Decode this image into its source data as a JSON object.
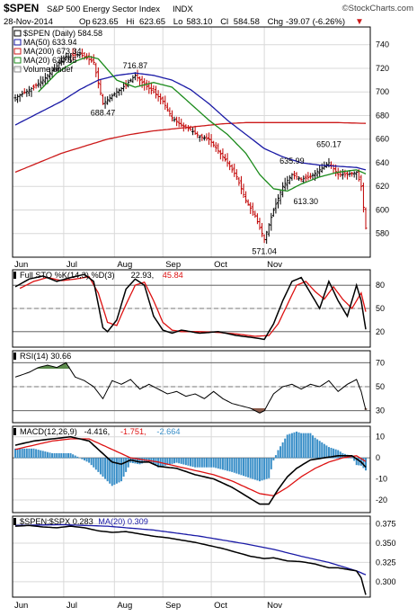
{
  "header": {
    "symbol": "$SPEN",
    "description": "S&P 500 Energy Sector Index",
    "exchange": "INDX",
    "logo": "©StockCharts.com",
    "date": "28-Nov-2014",
    "quote": [
      {
        "label": "Op",
        "value": "623.65"
      },
      {
        "label": "Hi",
        "value": "623.65"
      },
      {
        "label": "Lo",
        "value": "583.10"
      },
      {
        "label": "Cl",
        "value": "584.58"
      },
      {
        "label": "Chg",
        "value": "-39.07 (-6.26%)"
      }
    ],
    "down_marker": "▼"
  },
  "colors": {
    "frame": "#000000",
    "grid": "#d9d9d9",
    "price": "#000000",
    "ma50": "#1a1aa6",
    "ma200": "#cc1a1a",
    "ma20": "#1a8a1a",
    "sto_k": "#000000",
    "sto_d": "#dd1111",
    "rsi_hi_fill": "#5a8a4a",
    "rsi_lo_fill": "#8a5a4a",
    "macd_line": "#000000",
    "macd_signal": "#dd1111",
    "macd_hist": "#3a8fc8",
    "ratio_ma": "#1a1aa6"
  },
  "chart_data": [
    {
      "type": "ohlc",
      "panel": "price",
      "legend": [
        {
          "key": "price",
          "text": "$SPEN (Daily) 584.58"
        },
        {
          "key": "ma50",
          "text": "MA(50) 633.94"
        },
        {
          "key": "ma200",
          "text": "MA(200) 673.34"
        },
        {
          "key": "ma20",
          "text": "MA(20) 630.55"
        },
        {
          "key": "volume",
          "text": "Volume undef"
        }
      ],
      "ylim": [
        560,
        755
      ],
      "yticks": [
        580,
        600,
        620,
        640,
        660,
        680,
        700,
        720,
        740
      ],
      "annotations": [
        {
          "text": "716.87",
          "day": 52,
          "value": 716.87,
          "pos": "above"
        },
        {
          "text": "688.47",
          "day": 38,
          "value": 688.47,
          "pos": "below"
        },
        {
          "text": "650.17",
          "day": 136,
          "value": 650.17,
          "pos": "above"
        },
        {
          "text": "635.99",
          "day": 120,
          "value": 635.99,
          "pos": "above"
        },
        {
          "text": "613.30",
          "day": 126,
          "value": 613.3,
          "pos": "below"
        },
        {
          "text": "571.04",
          "day": 108,
          "value": 571.04,
          "pos": "below"
        }
      ],
      "close_anchors": [
        [
          0,
          695
        ],
        [
          8,
          704
        ],
        [
          12,
          710
        ],
        [
          18,
          722
        ],
        [
          22,
          730
        ],
        [
          28,
          732
        ],
        [
          34,
          725
        ],
        [
          38,
          690
        ],
        [
          44,
          700
        ],
        [
          48,
          706
        ],
        [
          52,
          714
        ],
        [
          56,
          706
        ],
        [
          60,
          700
        ],
        [
          64,
          692
        ],
        [
          68,
          678
        ],
        [
          72,
          672
        ],
        [
          76,
          668
        ],
        [
          80,
          662
        ],
        [
          84,
          660
        ],
        [
          88,
          650
        ],
        [
          92,
          640
        ],
        [
          96,
          628
        ],
        [
          100,
          608
        ],
        [
          104,
          595
        ],
        [
          108,
          575
        ],
        [
          112,
          600
        ],
        [
          116,
          620
        ],
        [
          120,
          630
        ],
        [
          124,
          626
        ],
        [
          128,
          628
        ],
        [
          132,
          634
        ],
        [
          136,
          640
        ],
        [
          140,
          630
        ],
        [
          144,
          630
        ],
        [
          148,
          632
        ],
        [
          150,
          620
        ],
        [
          152,
          584.58
        ]
      ],
      "ma50_anchors": [
        [
          0,
          672
        ],
        [
          8,
          680
        ],
        [
          20,
          692
        ],
        [
          28,
          702
        ],
        [
          36,
          710
        ],
        [
          44,
          714
        ],
        [
          52,
          716
        ],
        [
          60,
          714
        ],
        [
          68,
          710
        ],
        [
          76,
          702
        ],
        [
          84,
          690
        ],
        [
          92,
          676
        ],
        [
          100,
          664
        ],
        [
          108,
          652
        ],
        [
          116,
          645
        ],
        [
          124,
          640
        ],
        [
          132,
          638
        ],
        [
          140,
          637
        ],
        [
          148,
          636
        ],
        [
          152,
          633.94
        ]
      ],
      "ma200_anchors": [
        [
          0,
          632
        ],
        [
          10,
          640
        ],
        [
          20,
          648
        ],
        [
          30,
          654
        ],
        [
          40,
          660
        ],
        [
          50,
          664
        ],
        [
          60,
          667
        ],
        [
          70,
          669
        ],
        [
          80,
          671
        ],
        [
          90,
          673
        ],
        [
          100,
          674
        ],
        [
          110,
          674
        ],
        [
          120,
          674
        ],
        [
          130,
          674
        ],
        [
          140,
          674
        ],
        [
          152,
          673.34
        ]
      ],
      "ma20_anchors": [
        [
          10,
          700
        ],
        [
          18,
          716
        ],
        [
          26,
          726
        ],
        [
          32,
          730
        ],
        [
          36,
          728
        ],
        [
          44,
          710
        ],
        [
          52,
          704
        ],
        [
          60,
          708
        ],
        [
          68,
          704
        ],
        [
          76,
          690
        ],
        [
          84,
          676
        ],
        [
          92,
          664
        ],
        [
          100,
          648
        ],
        [
          106,
          630
        ],
        [
          112,
          618
        ],
        [
          118,
          616
        ],
        [
          124,
          622
        ],
        [
          132,
          628
        ],
        [
          140,
          632
        ],
        [
          148,
          634
        ],
        [
          152,
          630.55
        ]
      ]
    },
    {
      "type": "line",
      "panel": "sto",
      "legend": [
        {
          "key": "label",
          "text": "Full STO %K(14,3) %D(3)"
        },
        {
          "key": "sto_k",
          "text": "22.93,"
        },
        {
          "key": "sto_d",
          "text": "45.84"
        }
      ],
      "ylim": [
        0,
        100
      ],
      "yticks": [
        20,
        50,
        80
      ],
      "k_anchors": [
        [
          0,
          78
        ],
        [
          6,
          88
        ],
        [
          12,
          92
        ],
        [
          18,
          85
        ],
        [
          24,
          90
        ],
        [
          30,
          94
        ],
        [
          34,
          85
        ],
        [
          38,
          25
        ],
        [
          40,
          20
        ],
        [
          44,
          35
        ],
        [
          48,
          75
        ],
        [
          52,
          88
        ],
        [
          56,
          80
        ],
        [
          60,
          40
        ],
        [
          64,
          22
        ],
        [
          68,
          18
        ],
        [
          72,
          22
        ],
        [
          80,
          18
        ],
        [
          88,
          20
        ],
        [
          96,
          15
        ],
        [
          104,
          12
        ],
        [
          108,
          10
        ],
        [
          112,
          30
        ],
        [
          116,
          60
        ],
        [
          120,
          85
        ],
        [
          124,
          90
        ],
        [
          128,
          70
        ],
        [
          132,
          50
        ],
        [
          136,
          85
        ],
        [
          140,
          60
        ],
        [
          144,
          40
        ],
        [
          148,
          80
        ],
        [
          150,
          60
        ],
        [
          152,
          22.93
        ]
      ],
      "d_anchors": [
        [
          2,
          76
        ],
        [
          8,
          85
        ],
        [
          14,
          90
        ],
        [
          20,
          86
        ],
        [
          26,
          88
        ],
        [
          32,
          91
        ],
        [
          36,
          70
        ],
        [
          40,
          32
        ],
        [
          44,
          28
        ],
        [
          48,
          55
        ],
        [
          52,
          80
        ],
        [
          56,
          84
        ],
        [
          60,
          60
        ],
        [
          64,
          32
        ],
        [
          68,
          22
        ],
        [
          72,
          20
        ],
        [
          80,
          20
        ],
        [
          88,
          19
        ],
        [
          96,
          17
        ],
        [
          104,
          14
        ],
        [
          110,
          15
        ],
        [
          114,
          30
        ],
        [
          118,
          55
        ],
        [
          122,
          80
        ],
        [
          126,
          85
        ],
        [
          130,
          72
        ],
        [
          134,
          62
        ],
        [
          138,
          78
        ],
        [
          142,
          62
        ],
        [
          146,
          50
        ],
        [
          150,
          70
        ],
        [
          152,
          45.84
        ]
      ]
    },
    {
      "type": "line",
      "panel": "rsi",
      "legend": [
        {
          "key": "label",
          "text": "RSI(14) 30.66"
        }
      ],
      "ylim": [
        20,
        80
      ],
      "yticks": [
        30,
        50,
        70
      ],
      "anchors": [
        [
          0,
          58
        ],
        [
          6,
          62
        ],
        [
          10,
          66
        ],
        [
          14,
          68
        ],
        [
          18,
          66
        ],
        [
          22,
          70
        ],
        [
          26,
          58
        ],
        [
          30,
          55
        ],
        [
          34,
          50
        ],
        [
          38,
          40
        ],
        [
          42,
          55
        ],
        [
          46,
          52
        ],
        [
          50,
          56
        ],
        [
          54,
          48
        ],
        [
          58,
          52
        ],
        [
          62,
          48
        ],
        [
          66,
          44
        ],
        [
          70,
          46
        ],
        [
          74,
          42
        ],
        [
          78,
          44
        ],
        [
          82,
          40
        ],
        [
          86,
          46
        ],
        [
          90,
          40
        ],
        [
          94,
          36
        ],
        [
          98,
          34
        ],
        [
          102,
          32
        ],
        [
          106,
          28
        ],
        [
          108,
          30
        ],
        [
          112,
          44
        ],
        [
          116,
          50
        ],
        [
          120,
          52
        ],
        [
          124,
          48
        ],
        [
          128,
          52
        ],
        [
          132,
          50
        ],
        [
          136,
          55
        ],
        [
          140,
          46
        ],
        [
          144,
          52
        ],
        [
          148,
          56
        ],
        [
          150,
          46
        ],
        [
          152,
          30.66
        ]
      ]
    },
    {
      "type": "line",
      "panel": "macd",
      "legend": [
        {
          "key": "label",
          "text": "MACD(12,26,9)"
        },
        {
          "key": "macd_line",
          "text": "-4.416,"
        },
        {
          "key": "macd_signal",
          "text": "-1.751,"
        },
        {
          "key": "macd_hist",
          "text": "-2.664"
        }
      ],
      "ylim": [
        -26,
        15
      ],
      "yticks": [
        -20,
        -10,
        0,
        10
      ],
      "macd_anchors": [
        [
          0,
          6
        ],
        [
          8,
          8
        ],
        [
          16,
          9
        ],
        [
          24,
          10
        ],
        [
          32,
          8
        ],
        [
          38,
          2
        ],
        [
          42,
          -2
        ],
        [
          46,
          -3
        ],
        [
          50,
          -1
        ],
        [
          54,
          -2
        ],
        [
          58,
          -2
        ],
        [
          62,
          -4
        ],
        [
          70,
          -5
        ],
        [
          78,
          -8
        ],
        [
          86,
          -10
        ],
        [
          94,
          -14
        ],
        [
          100,
          -18
        ],
        [
          106,
          -22
        ],
        [
          110,
          -22
        ],
        [
          114,
          -15
        ],
        [
          118,
          -9
        ],
        [
          122,
          -5
        ],
        [
          128,
          -1
        ],
        [
          134,
          0
        ],
        [
          140,
          1
        ],
        [
          146,
          1
        ],
        [
          150,
          -2
        ],
        [
          152,
          -4.416
        ]
      ],
      "signal_anchors": [
        [
          0,
          4
        ],
        [
          8,
          6
        ],
        [
          16,
          8
        ],
        [
          24,
          9
        ],
        [
          32,
          9
        ],
        [
          38,
          6
        ],
        [
          44,
          3
        ],
        [
          50,
          0
        ],
        [
          56,
          -1
        ],
        [
          62,
          -2
        ],
        [
          70,
          -4
        ],
        [
          78,
          -6
        ],
        [
          86,
          -8
        ],
        [
          94,
          -11
        ],
        [
          100,
          -14
        ],
        [
          106,
          -17
        ],
        [
          112,
          -18
        ],
        [
          118,
          -14
        ],
        [
          124,
          -9
        ],
        [
          130,
          -5
        ],
        [
          136,
          -2
        ],
        [
          142,
          0
        ],
        [
          148,
          1
        ],
        [
          152,
          -1.751
        ]
      ]
    },
    {
      "type": "line",
      "panel": "ratio",
      "legend": [
        {
          "key": "label",
          "text": "$SPEN:$SPX 0.283"
        },
        {
          "key": "ratio_ma",
          "text": "MA(20) 0.309"
        }
      ],
      "ylim": [
        0.28,
        0.385
      ],
      "yticks": [
        0.3,
        0.325,
        0.35,
        0.375
      ],
      "ytick_labels": [
        "0.300",
        "0.325",
        "0.350",
        "0.375"
      ],
      "anchors": [
        [
          0,
          0.372
        ],
        [
          6,
          0.373
        ],
        [
          12,
          0.371
        ],
        [
          18,
          0.37
        ],
        [
          24,
          0.372
        ],
        [
          30,
          0.37
        ],
        [
          36,
          0.366
        ],
        [
          42,
          0.364
        ],
        [
          48,
          0.365
        ],
        [
          54,
          0.362
        ],
        [
          60,
          0.359
        ],
        [
          66,
          0.357
        ],
        [
          72,
          0.354
        ],
        [
          78,
          0.351
        ],
        [
          84,
          0.347
        ],
        [
          90,
          0.343
        ],
        [
          96,
          0.338
        ],
        [
          102,
          0.333
        ],
        [
          108,
          0.33
        ],
        [
          112,
          0.331
        ],
        [
          118,
          0.327
        ],
        [
          124,
          0.326
        ],
        [
          130,
          0.323
        ],
        [
          136,
          0.318
        ],
        [
          140,
          0.318
        ],
        [
          144,
          0.316
        ],
        [
          148,
          0.314
        ],
        [
          150,
          0.305
        ],
        [
          152,
          0.283
        ]
      ],
      "ma_anchors": [
        [
          0,
          0.373
        ],
        [
          20,
          0.374
        ],
        [
          40,
          0.372
        ],
        [
          60,
          0.367
        ],
        [
          80,
          0.359
        ],
        [
          100,
          0.349
        ],
        [
          112,
          0.342
        ],
        [
          124,
          0.333
        ],
        [
          136,
          0.325
        ],
        [
          148,
          0.314
        ],
        [
          152,
          0.309
        ]
      ]
    }
  ],
  "x_axis": {
    "total_days": 153,
    "months": [
      {
        "label": "Jun",
        "day": 0
      },
      {
        "label": "Jul",
        "day": 21
      },
      {
        "label": "Aug",
        "day": 43
      },
      {
        "label": "Sep",
        "day": 64
      },
      {
        "label": "Oct",
        "day": 85
      },
      {
        "label": "Nov",
        "day": 108
      }
    ]
  }
}
